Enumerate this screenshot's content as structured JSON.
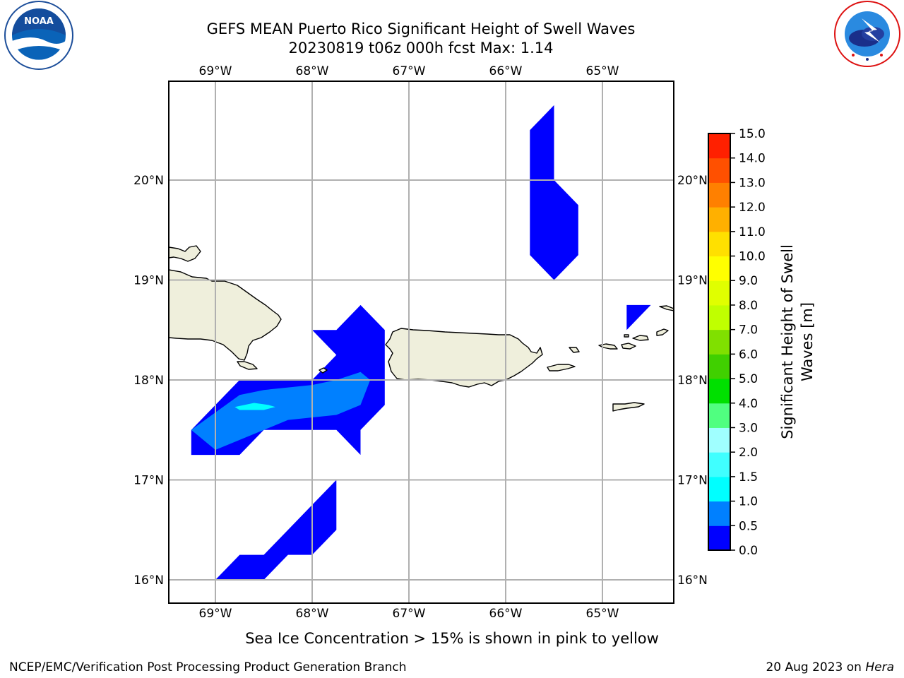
{
  "title": {
    "line1": "GEFS MEAN Puerto Rico Significant Height of Swell Waves",
    "line2": "20230819 t06z 000h fcst   Max: 1.14"
  },
  "logos": {
    "left": {
      "icon": "noaa-logo",
      "text": "NOAA",
      "ring_text": "NATIONAL OCEANIC AND ATMOSPHERIC ADMINISTRATION · U.S. DEPARTMENT OF COMMERCE"
    },
    "right": {
      "icon": "nws-logo",
      "ring_text": "NATIONAL WEATHER SERVICE"
    }
  },
  "map": {
    "lon_ticks": [
      "69°W",
      "68°W",
      "67°W",
      "66°W",
      "65°W"
    ],
    "lat_ticks": [
      "20°N",
      "19°N",
      "18°N",
      "17°N",
      "16°N"
    ],
    "lon_values": [
      -69,
      -68,
      -67,
      -66,
      -65
    ],
    "lat_values": [
      20,
      19,
      18,
      17,
      16
    ],
    "extent": {
      "lon": [
        -69.48,
        -64.25
      ],
      "lat": [
        15.77,
        20.98
      ]
    },
    "grid": true,
    "land_color": "#efefdc",
    "swell_regions": [
      {
        "name": "north",
        "level": "0.0-0.5",
        "color": "#0000ff",
        "points": [
          [
            -65.75,
            20.5
          ],
          [
            -65.5,
            20.75
          ],
          [
            -65.5,
            20.0
          ],
          [
            -65.25,
            19.75
          ],
          [
            -65.25,
            19.25
          ],
          [
            -65.5,
            19.0
          ],
          [
            -65.75,
            19.25
          ]
        ]
      },
      {
        "name": "virgin-islands",
        "level": "0.0-0.5",
        "color": "#0000ff",
        "points": [
          [
            -64.75,
            18.75
          ],
          [
            -64.5,
            18.75
          ],
          [
            -64.75,
            18.5
          ]
        ]
      },
      {
        "name": "mona-passage",
        "level": "0.0-0.5",
        "color": "#0000ff",
        "points": [
          [
            -68.0,
            18.5
          ],
          [
            -67.75,
            18.5
          ],
          [
            -67.5,
            18.75
          ],
          [
            -67.25,
            18.5
          ],
          [
            -67.25,
            17.75
          ],
          [
            -67.5,
            17.5
          ],
          [
            -67.5,
            17.25
          ],
          [
            -67.75,
            17.5
          ],
          [
            -68.5,
            17.5
          ],
          [
            -68.75,
            17.25
          ],
          [
            -69.25,
            17.25
          ],
          [
            -69.25,
            17.5
          ],
          [
            -69.0,
            17.75
          ],
          [
            -68.75,
            18.0
          ],
          [
            -68.0,
            18.0
          ],
          [
            -67.75,
            18.25
          ]
        ]
      },
      {
        "name": "mona-passage-core",
        "level": "0.5-1.0",
        "color": "#0080ff",
        "points": [
          [
            -69.25,
            17.5
          ],
          [
            -69.0,
            17.3
          ],
          [
            -68.75,
            17.4
          ],
          [
            -68.5,
            17.5
          ],
          [
            -68.25,
            17.6
          ],
          [
            -67.75,
            17.65
          ],
          [
            -67.5,
            17.75
          ],
          [
            -67.4,
            18.0
          ],
          [
            -67.5,
            18.08
          ],
          [
            -67.75,
            18.0
          ],
          [
            -68.0,
            17.95
          ],
          [
            -68.5,
            17.9
          ],
          [
            -68.75,
            17.85
          ]
        ]
      },
      {
        "name": "mona-passage-max",
        "level": "1.0-1.5",
        "color": "#00ffff",
        "points": [
          [
            -68.8,
            17.73
          ],
          [
            -68.6,
            17.77
          ],
          [
            -68.45,
            17.75
          ],
          [
            -68.38,
            17.73
          ],
          [
            -68.5,
            17.7
          ],
          [
            -68.75,
            17.7
          ]
        ]
      },
      {
        "name": "south",
        "level": "0.0-0.5",
        "color": "#0000ff",
        "points": [
          [
            -69.0,
            16.0
          ],
          [
            -68.75,
            16.25
          ],
          [
            -68.5,
            16.25
          ],
          [
            -68.25,
            16.5
          ],
          [
            -68.0,
            16.75
          ],
          [
            -67.75,
            17.0
          ],
          [
            -67.75,
            16.5
          ],
          [
            -68.0,
            16.25
          ],
          [
            -68.25,
            16.25
          ],
          [
            -68.5,
            16.0
          ]
        ]
      }
    ]
  },
  "colorbar": {
    "title_line1": "Significant Height of Swell",
    "title_line2": "Waves [m]",
    "labels": [
      "0.0",
      "0.5",
      "1.0",
      "1.5",
      "2.0",
      "3.0",
      "4.0",
      "5.0",
      "6.0",
      "7.0",
      "8.0",
      "9.0",
      "10.0",
      "11.0",
      "12.0",
      "13.0",
      "14.0",
      "15.0"
    ],
    "colors": [
      "#0000ff",
      "#0080ff",
      "#00ffff",
      "#40ffff",
      "#a0ffff",
      "#50ff80",
      "#00e000",
      "#40d000",
      "#80e000",
      "#c0ff00",
      "#e0ff00",
      "#ffff00",
      "#ffe000",
      "#ffb000",
      "#ff8000",
      "#ff5000",
      "#ff2000"
    ]
  },
  "note": "Sea Ice Concentration > 15% is shown in pink to yellow",
  "footer": {
    "left": "NCEP/EMC/Verification Post Processing Product Generation Branch",
    "right_date": "20 Aug 2023 on ",
    "right_host": "Hera"
  }
}
